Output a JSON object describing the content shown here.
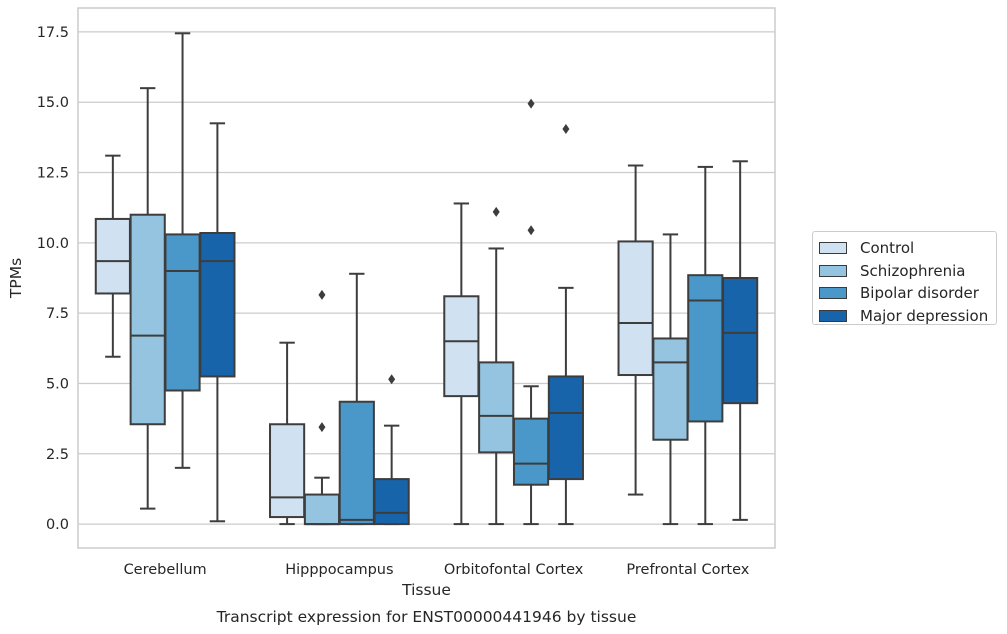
{
  "chart_data": {
    "type": "boxplot",
    "xlabel": "Tissue",
    "ylabel": "TPMs",
    "caption": "Transcript expression for ENST00000441946 by tissue",
    "ylim": [
      -0.85,
      18.35
    ],
    "yticks": [
      "0.0",
      "2.5",
      "5.0",
      "7.5",
      "10.0",
      "12.5",
      "15.0",
      "17.5"
    ],
    "ytick_values": [
      0,
      2.5,
      5,
      7.5,
      10,
      12.5,
      15,
      17.5
    ],
    "grid": "horizontal",
    "legend_position": "outside-right",
    "categories": [
      "Cerebellum",
      "Hipppocampus",
      "Orbitofontal Cortex",
      "Prefrontal Cortex"
    ],
    "series": [
      {
        "name": "Control",
        "color": "#d0e1f2",
        "boxes": [
          {
            "whislo": 5.95,
            "q1": 8.2,
            "med": 9.35,
            "q3": 10.85,
            "whishi": 13.1,
            "fliers": []
          },
          {
            "whislo": 0.0,
            "q1": 0.25,
            "med": 0.95,
            "q3": 3.55,
            "whishi": 6.45,
            "fliers": []
          },
          {
            "whislo": 0.0,
            "q1": 4.55,
            "med": 6.5,
            "q3": 8.1,
            "whishi": 11.4,
            "fliers": []
          },
          {
            "whislo": 1.05,
            "q1": 5.3,
            "med": 7.15,
            "q3": 10.05,
            "whishi": 12.75,
            "fliers": []
          }
        ]
      },
      {
        "name": "Schizophrenia",
        "color": "#94c4df",
        "boxes": [
          {
            "whislo": 0.55,
            "q1": 3.55,
            "med": 6.7,
            "q3": 11.0,
            "whishi": 15.5,
            "fliers": []
          },
          {
            "whislo": 0.0,
            "q1": 0.0,
            "med": 0.0,
            "q3": 1.05,
            "whishi": 1.65,
            "fliers": [
              3.45,
              8.15
            ]
          },
          {
            "whislo": 0.0,
            "q1": 2.55,
            "med": 3.85,
            "q3": 5.75,
            "whishi": 9.8,
            "fliers": [
              11.1
            ]
          },
          {
            "whislo": 0.0,
            "q1": 3.0,
            "med": 5.75,
            "q3": 6.6,
            "whishi": 10.3,
            "fliers": []
          }
        ]
      },
      {
        "name": "Bipolar disorder",
        "color": "#4a98c9",
        "boxes": [
          {
            "whislo": 2.0,
            "q1": 4.75,
            "med": 9.0,
            "q3": 10.3,
            "whishi": 17.45,
            "fliers": []
          },
          {
            "whislo": 0.0,
            "q1": 0.0,
            "med": 0.15,
            "q3": 4.35,
            "whishi": 8.9,
            "fliers": []
          },
          {
            "whislo": 0.0,
            "q1": 1.4,
            "med": 2.15,
            "q3": 3.75,
            "whishi": 4.9,
            "fliers": [
              10.45,
              14.95
            ]
          },
          {
            "whislo": 0.0,
            "q1": 3.65,
            "med": 7.95,
            "q3": 8.85,
            "whishi": 12.7,
            "fliers": []
          }
        ]
      },
      {
        "name": "Major depression",
        "color": "#1764ab",
        "boxes": [
          {
            "whislo": 0.1,
            "q1": 5.25,
            "med": 9.35,
            "q3": 10.35,
            "whishi": 14.25,
            "fliers": []
          },
          {
            "whislo": 0.0,
            "q1": 0.0,
            "med": 0.4,
            "q3": 1.6,
            "whishi": 3.5,
            "fliers": [
              5.15
            ]
          },
          {
            "whislo": 0.0,
            "q1": 1.6,
            "med": 3.95,
            "q3": 5.25,
            "whishi": 8.4,
            "fliers": [
              14.05
            ]
          },
          {
            "whislo": 0.15,
            "q1": 4.3,
            "med": 6.8,
            "q3": 8.75,
            "whishi": 12.9,
            "fliers": []
          }
        ]
      }
    ]
  }
}
